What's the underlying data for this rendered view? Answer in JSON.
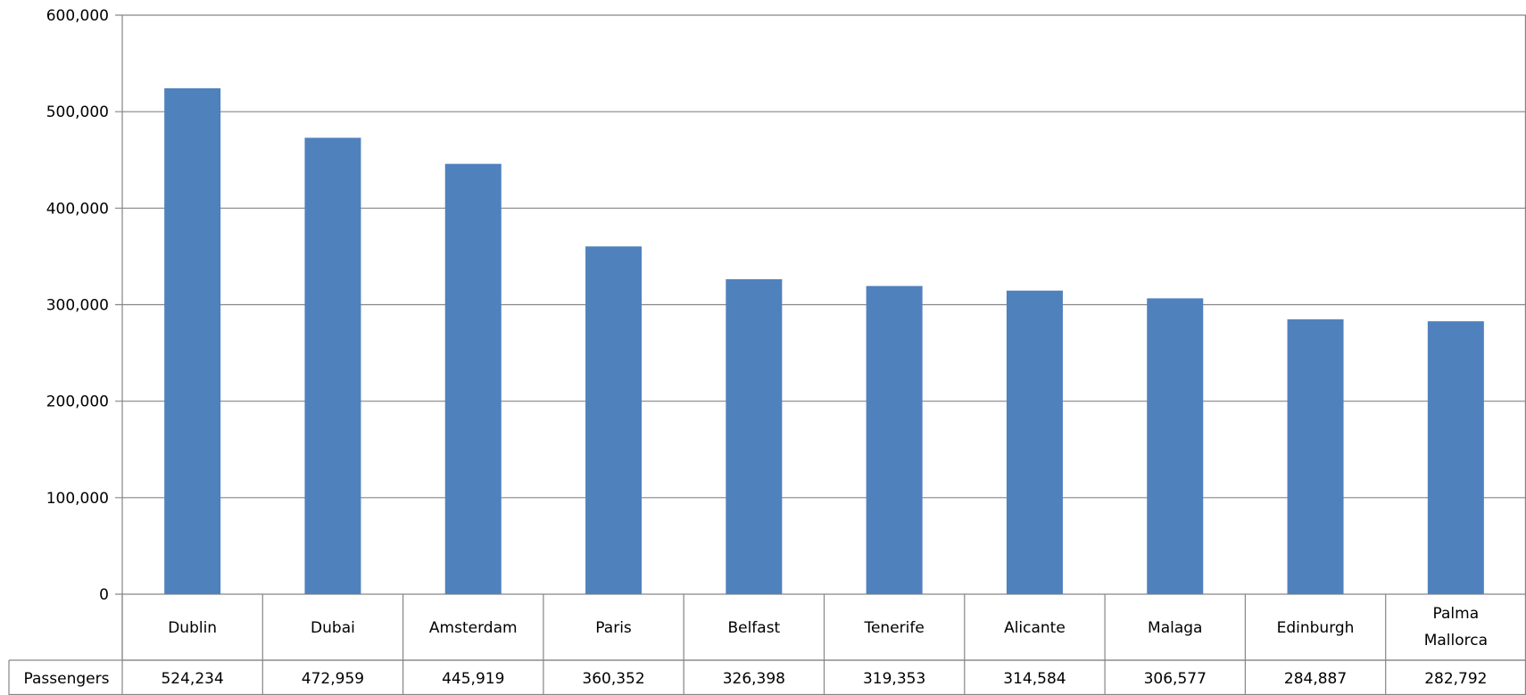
{
  "colors": {
    "bar": "#4F81BD",
    "grid": "#868686",
    "border": "#868686"
  },
  "chart_data": {
    "type": "bar",
    "title": "",
    "xlabel": "",
    "ylabel": "",
    "ylim": [
      0,
      600000
    ],
    "grid": true,
    "legend": "none",
    "yticks": [
      "0",
      "100,000",
      "200,000",
      "300,000",
      "400,000",
      "500,000",
      "600,000"
    ],
    "categories": [
      "Dublin",
      "Dubai",
      "Amsterdam",
      "Paris",
      "Belfast",
      "Tenerife",
      "Alicante",
      "Malaga",
      "Edinburgh",
      "Palma Mallorca"
    ],
    "series": [
      {
        "name": "Passengers",
        "values": [
          524234,
          472959,
          445919,
          360352,
          326398,
          319353,
          314584,
          306577,
          284887,
          282792
        ],
        "labels": [
          "524,234",
          "472,959",
          "445,919",
          "360,352",
          "326,398",
          "319,353",
          "314,584",
          "306,577",
          "284,887",
          "282,792"
        ]
      }
    ]
  }
}
